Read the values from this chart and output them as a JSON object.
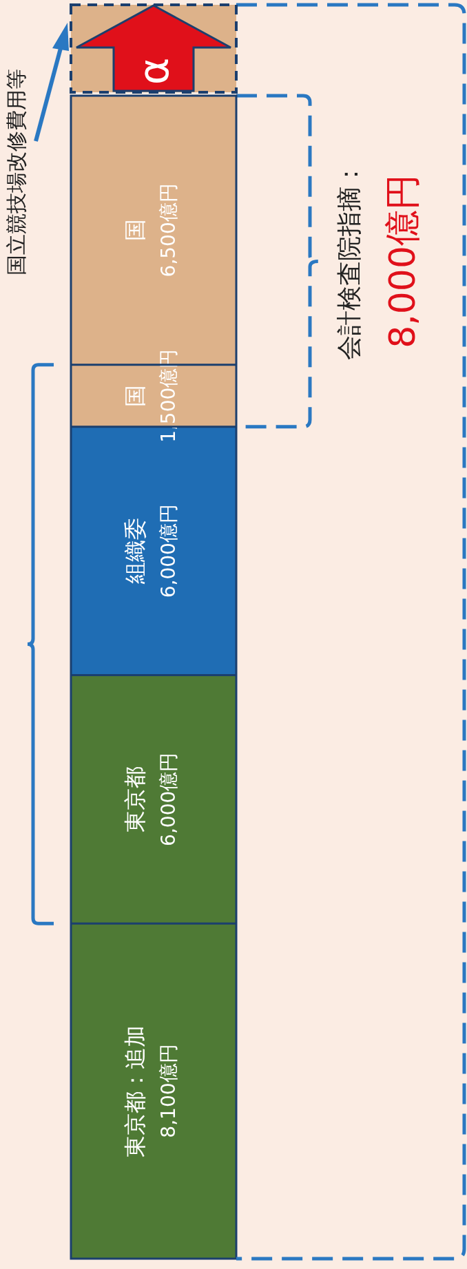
{
  "chart_data": {
    "type": "bar",
    "stacked": true,
    "categories": [
      null
    ],
    "series": [
      {
        "name": "東京都：追加",
        "color": "#4f7a35",
        "values": [
          8100
        ],
        "value_labels": [
          "8,100億円"
        ]
      },
      {
        "name": "東京都",
        "color": "#4f7a35",
        "values": [
          6000
        ],
        "value_labels": [
          "6,000億円"
        ]
      },
      {
        "name": "組織委",
        "color": "#1f6db4",
        "values": [
          6000
        ],
        "value_labels": [
          "6,000億円"
        ]
      },
      {
        "name": "国",
        "color": "#ddb28a",
        "values": [
          1500
        ],
        "value_labels": [
          "1,500億円"
        ]
      },
      {
        "name": "国",
        "color": "#ddb28a",
        "values": [
          6500
        ],
        "value_labels": [
          "6,500億円"
        ]
      }
    ],
    "annotations": [
      "国立競技場改修費用等",
      "会計検査院指摘：",
      "8,000億円",
      "α"
    ],
    "legend": false
  }
}
